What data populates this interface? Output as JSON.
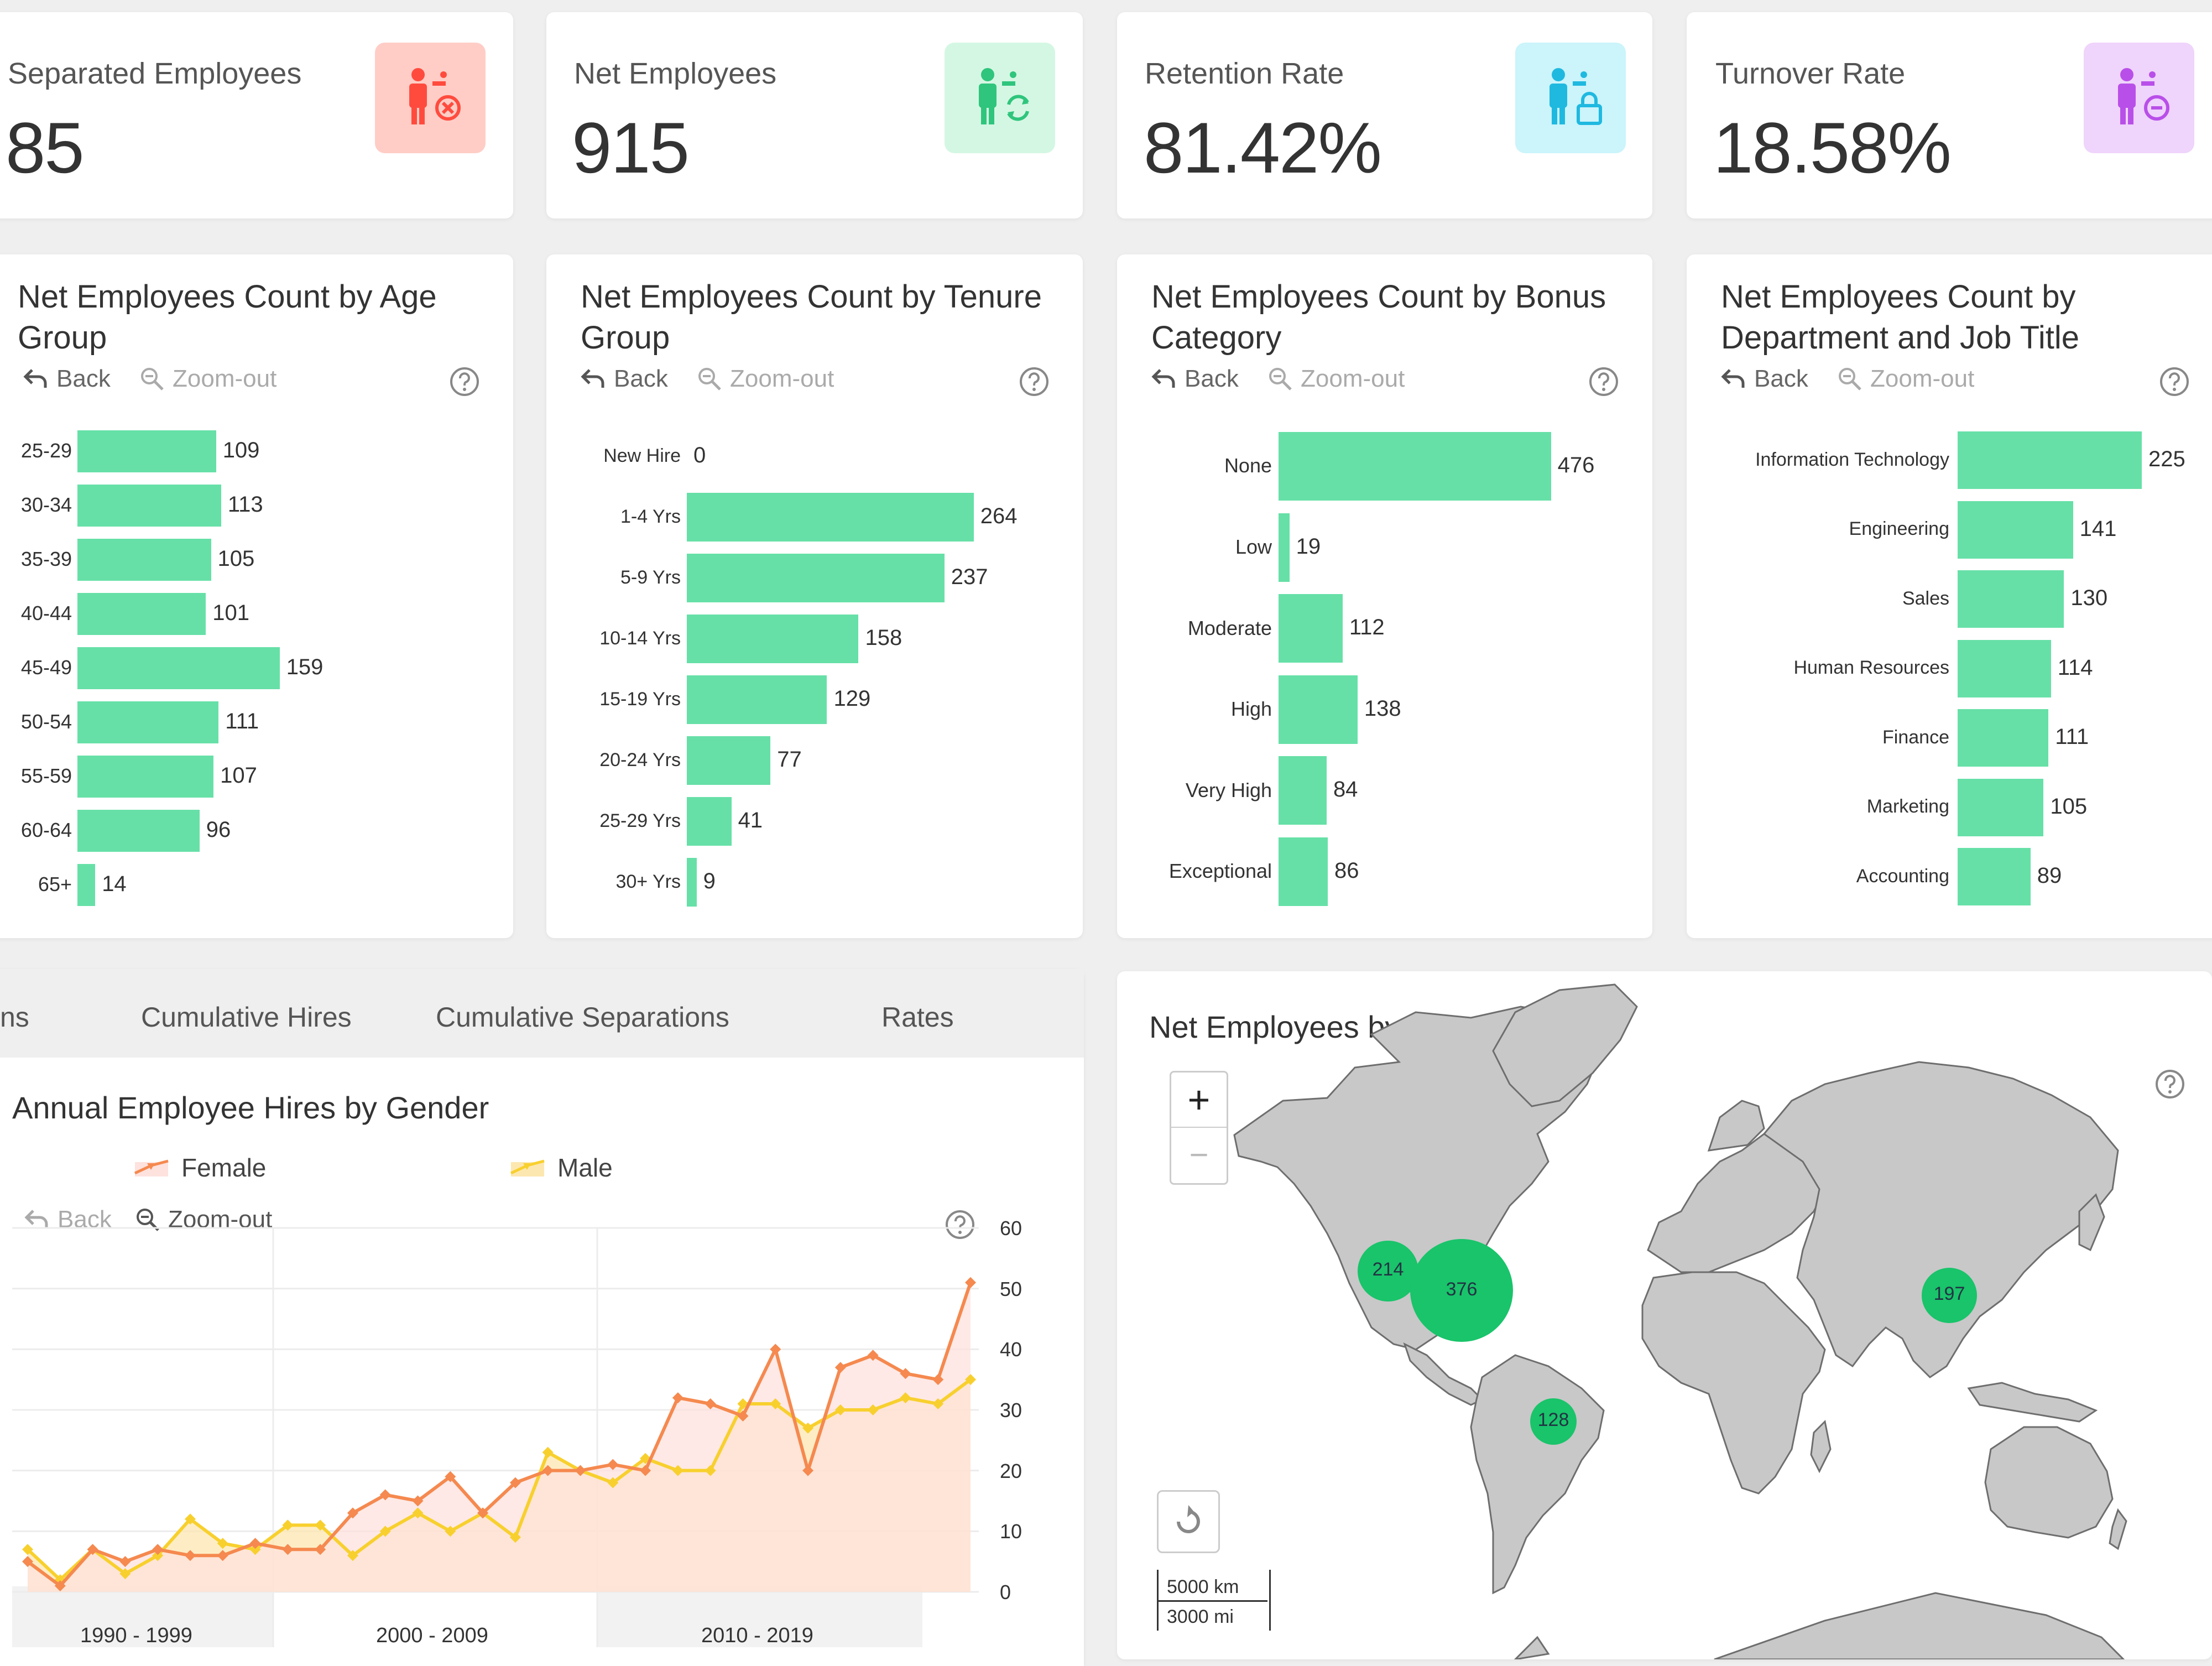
{
  "kpis": [
    {
      "title": "Separated Employees",
      "value": "85",
      "icon": "person-remove-icon",
      "bg": "#ffcdc6",
      "fg": "#ff4b3e"
    },
    {
      "title": "Net Employees",
      "value": "915",
      "icon": "person-sync-icon",
      "bg": "#d4f7e3",
      "fg": "#2fc57c"
    },
    {
      "title": "Retention Rate",
      "value": "81.42%",
      "icon": "person-lock-icon",
      "bg": "#cbf4fb",
      "fg": "#1fb9e0"
    },
    {
      "title": "Turnover Rate",
      "value": "18.58%",
      "icon": "person-minus-icon",
      "bg": "#efd4fb",
      "fg": "#b94fe9"
    }
  ],
  "toolbar": {
    "back": "Back",
    "zoom_out": "Zoom-out"
  },
  "bar_charts": [
    {
      "title": "Net Employees Count by Age Group",
      "categories": [
        "25-29",
        "30-34",
        "35-39",
        "40-44",
        "45-49",
        "50-54",
        "55-59",
        "60-64",
        "65+"
      ],
      "values": [
        109,
        113,
        105,
        101,
        159,
        111,
        107,
        96,
        14
      ]
    },
    {
      "title": "Net Employees Count by Tenure Group",
      "categories": [
        "New Hire",
        "1-4 Yrs",
        "5-9 Yrs",
        "10-14 Yrs",
        "15-19 Yrs",
        "20-24 Yrs",
        "25-29 Yrs",
        "30+ Yrs"
      ],
      "values": [
        0,
        264,
        237,
        158,
        129,
        77,
        41,
        9
      ]
    },
    {
      "title": "Net Employees Count by Bonus Category",
      "categories": [
        "None",
        "Low",
        "Moderate",
        "High",
        "Very High",
        "Exceptional"
      ],
      "values": [
        476,
        19,
        112,
        138,
        84,
        86
      ]
    },
    {
      "title": "Net Employees Count by Department and Job Title",
      "categories": [
        "Information Technology",
        "Engineering",
        "Sales",
        "Human Resources",
        "Finance",
        "Marketing",
        "Accounting"
      ],
      "values": [
        225,
        141,
        130,
        114,
        111,
        105,
        89
      ]
    }
  ],
  "tabs": [
    "ns",
    "Cumulative Hires",
    "Cumulative Separations",
    "Rates"
  ],
  "hires_chart": {
    "title": "Annual Employee Hires by Gender",
    "legend": [
      "Female",
      "Male"
    ],
    "colors": {
      "female": "#f5894f",
      "male": "#f8d02e",
      "female_fill": "#fde2de",
      "male_fill": "#fde7b0"
    },
    "y_ticks": [
      "60",
      "50",
      "40",
      "30",
      "20",
      "10",
      "0"
    ],
    "decades": [
      "1990 - 1999",
      "2000 - 2009",
      "2010 - 2019"
    ]
  },
  "chart_data": [
    {
      "type": "bar",
      "title": "Net Employees Count by Age Group",
      "categories": [
        "25-29",
        "30-34",
        "35-39",
        "40-44",
        "45-49",
        "50-54",
        "55-59",
        "60-64",
        "65+"
      ],
      "values": [
        109,
        113,
        105,
        101,
        159,
        111,
        107,
        96,
        14
      ]
    },
    {
      "type": "bar",
      "title": "Net Employees Count by Tenure Group",
      "categories": [
        "New Hire",
        "1-4 Yrs",
        "5-9 Yrs",
        "10-14 Yrs",
        "15-19 Yrs",
        "20-24 Yrs",
        "25-29 Yrs",
        "30+ Yrs"
      ],
      "values": [
        0,
        264,
        237,
        158,
        129,
        77,
        41,
        9
      ]
    },
    {
      "type": "bar",
      "title": "Net Employees Count by Bonus Category",
      "categories": [
        "None",
        "Low",
        "Moderate",
        "High",
        "Very High",
        "Exceptional"
      ],
      "values": [
        476,
        19,
        112,
        138,
        84,
        86
      ]
    },
    {
      "type": "bar",
      "title": "Net Employees Count by Department and Job Title",
      "categories": [
        "Information Technology",
        "Engineering",
        "Sales",
        "Human Resources",
        "Finance",
        "Marketing",
        "Accounting"
      ],
      "values": [
        225,
        141,
        130,
        114,
        111,
        105,
        89
      ]
    },
    {
      "type": "area",
      "title": "Annual Employee Hires by Gender",
      "x": [
        1990,
        1991,
        1992,
        1993,
        1994,
        1995,
        1996,
        1997,
        1998,
        1999,
        2000,
        2001,
        2002,
        2003,
        2004,
        2005,
        2006,
        2007,
        2008,
        2009,
        2010,
        2011,
        2012,
        2013,
        2014,
        2015,
        2016,
        2017,
        2018,
        2019
      ],
      "series": [
        {
          "name": "Female",
          "values": [
            5,
            1,
            7,
            5,
            7,
            6,
            6,
            8,
            7,
            7,
            13,
            16,
            15,
            19,
            13,
            18,
            20,
            20,
            21,
            20,
            32,
            31,
            29,
            40,
            20,
            37,
            39,
            36,
            35,
            51
          ]
        },
        {
          "name": "Male",
          "values": [
            7,
            2,
            7,
            3,
            6,
            12,
            8,
            7,
            11,
            11,
            6,
            10,
            13,
            10,
            13,
            9,
            23,
            20,
            18,
            22,
            20,
            20,
            31,
            31,
            27,
            30,
            30,
            32,
            31,
            35
          ]
        }
      ],
      "ylim": [
        0,
        60
      ],
      "decades": [
        "1990 - 1999",
        "2000 - 2009",
        "2010 - 2019"
      ]
    },
    {
      "type": "map-bubble",
      "title": "Net Employees by Country",
      "bubbles": [
        {
          "label": "214",
          "value": 214
        },
        {
          "label": "376",
          "value": 376
        },
        {
          "label": "128",
          "value": 128
        },
        {
          "label": "197",
          "value": 197
        }
      ]
    }
  ],
  "map": {
    "title": "Net Employees by Country",
    "zoom_in": "+",
    "zoom_out": "−",
    "scale_km": "5000 km",
    "scale_mi": "3000 mi",
    "bubble_color": "#19c46a",
    "bubbles": [
      "214",
      "376",
      "128",
      "197"
    ]
  }
}
